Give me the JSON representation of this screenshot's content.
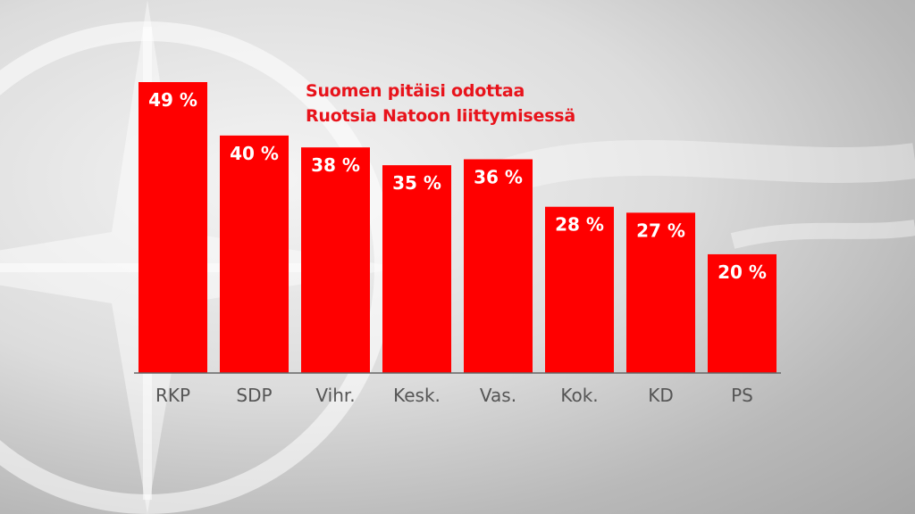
{
  "chart_data": {
    "type": "bar",
    "title_lines": [
      "Suomen pitäisi odottaa",
      "Ruotsia Natoon liittymisessä"
    ],
    "categories": [
      "RKP",
      "SDP",
      "Vihr.",
      "Kesk.",
      "Vas.",
      "Kok.",
      "KD",
      "PS"
    ],
    "values": [
      49,
      40,
      38,
      35,
      36,
      28,
      27,
      20
    ],
    "value_labels": [
      "49 %",
      "40 %",
      "38 %",
      "35 %",
      "36 %",
      "28 %",
      "27 %",
      "20 %"
    ],
    "unit": "%",
    "ylim": [
      0,
      49
    ],
    "grid": false,
    "legend": "none",
    "xlabel": "",
    "ylabel": ""
  },
  "colors": {
    "bar": "#ff0000",
    "title": "#e8131b",
    "value_label": "#ffffff",
    "category_label": "#555555",
    "baseline": "#666666"
  },
  "background_icon": "nato-compass-star-icon"
}
